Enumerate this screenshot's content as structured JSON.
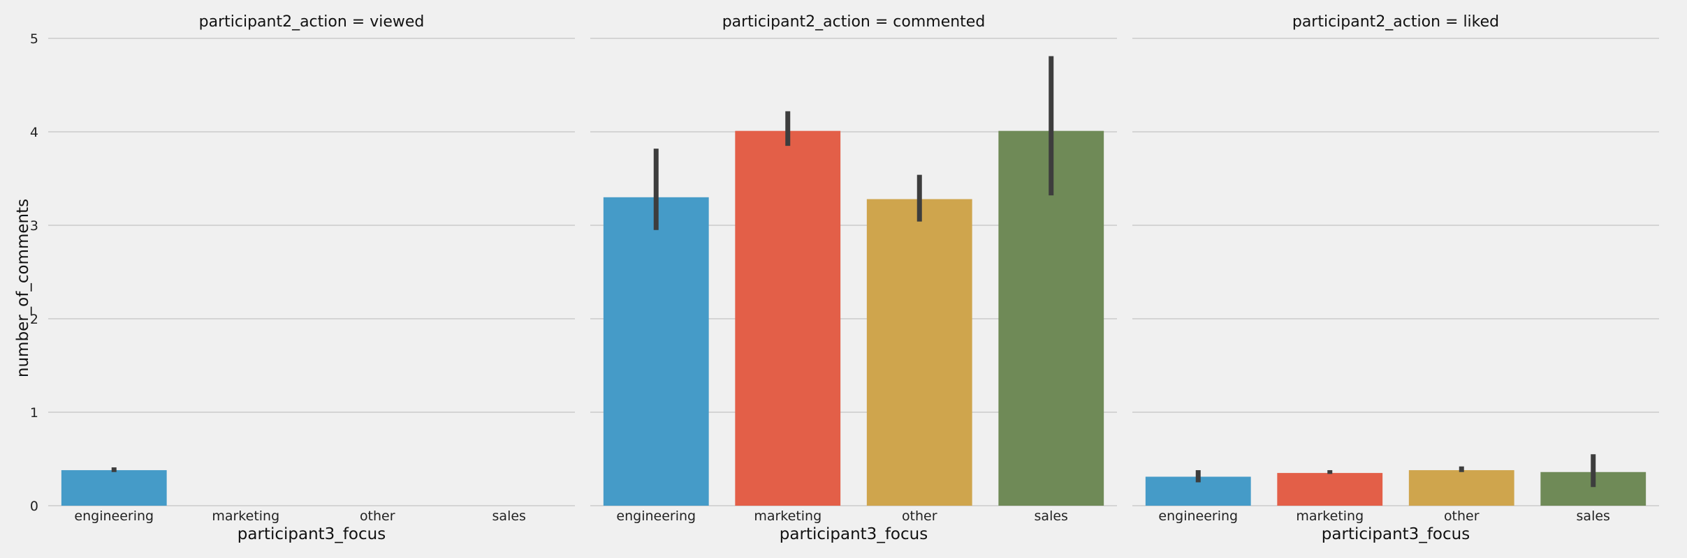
{
  "chart_data": {
    "type": "bar",
    "ylabel": "number_of_comments",
    "ylim": [
      0,
      5
    ],
    "yticks": [
      0,
      1,
      2,
      3,
      4,
      5
    ],
    "grid": true,
    "colors": {
      "engineering": "#459bc8",
      "marketing": "#e35f48",
      "other": "#cfa54d",
      "sales": "#6f8a57",
      "errorbar": "#3d3d3d",
      "background": "#f0f0f0",
      "grid": "#cbcbcb"
    },
    "panels": [
      {
        "title": "participant2_action = viewed",
        "xlabel": "participant3_focus",
        "categories": [
          "engineering",
          "marketing",
          "other",
          "sales"
        ],
        "values": [
          0.38,
          null,
          null,
          null
        ],
        "ci_low": [
          0.36,
          null,
          null,
          null
        ],
        "ci_high": [
          0.41,
          null,
          null,
          null
        ]
      },
      {
        "title": "participant2_action = commented",
        "xlabel": "participant3_focus",
        "categories": [
          "engineering",
          "marketing",
          "other",
          "sales"
        ],
        "values": [
          3.3,
          4.01,
          3.28,
          4.01
        ],
        "ci_low": [
          2.95,
          3.85,
          3.04,
          3.32
        ],
        "ci_high": [
          3.82,
          4.22,
          3.54,
          4.81
        ]
      },
      {
        "title": "participant2_action = liked",
        "xlabel": "participant3_focus",
        "categories": [
          "engineering",
          "marketing",
          "other",
          "sales"
        ],
        "values": [
          0.31,
          0.35,
          0.38,
          0.36
        ],
        "ci_low": [
          0.25,
          0.34,
          0.36,
          0.2
        ],
        "ci_high": [
          0.38,
          0.38,
          0.42,
          0.55
        ]
      }
    ]
  }
}
